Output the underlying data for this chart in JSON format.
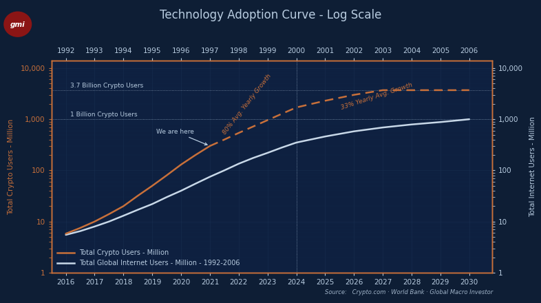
{
  "title": "Technology Adoption Curve - Log Scale",
  "background_color": "#0e1e35",
  "plot_bg_color": "#0e2040",
  "text_color": "#b8cce0",
  "grid_color": "#1a3355",
  "orange_color": "#c8703a",
  "white_color": "#c8d8e8",
  "xlim": [
    2015.5,
    2030.8
  ],
  "ylim": [
    1,
    14000
  ],
  "crypto_solid_years": [
    2016,
    2016.5,
    2017,
    2017.5,
    2018,
    2018.5,
    2019,
    2019.5,
    2020,
    2020.5,
    2021
  ],
  "crypto_solid_values": [
    5.8,
    7.5,
    10,
    14,
    20,
    32,
    50,
    80,
    130,
    200,
    300
  ],
  "crypto_dash_years": [
    2021,
    2021.5,
    2022,
    2022.5,
    2023,
    2023.5,
    2024,
    2025,
    2026,
    2027,
    2028,
    2029,
    2030
  ],
  "crypto_dash_values": [
    300,
    400,
    540,
    720,
    960,
    1280,
    1700,
    2300,
    3000,
    3700,
    3700,
    3700,
    3700
  ],
  "internet_years": [
    2016,
    2016.5,
    2017,
    2017.5,
    2018,
    2018.5,
    2019,
    2019.5,
    2020,
    2020.5,
    2021,
    2021.5,
    2022,
    2022.5,
    2023,
    2023.5,
    2024,
    2025,
    2026,
    2027,
    2028,
    2029,
    2030
  ],
  "internet_values": [
    5.5,
    6.5,
    8,
    10,
    13,
    17,
    22,
    30,
    40,
    55,
    75,
    100,
    135,
    175,
    220,
    280,
    350,
    460,
    580,
    690,
    790,
    880,
    1000
  ],
  "top_axis_labels": [
    "1992",
    "1993",
    "1994",
    "1995",
    "1996",
    "1997",
    "1998",
    "1999",
    "2000",
    "2001",
    "2002",
    "2003",
    "2004",
    "2005",
    "2006"
  ],
  "top_axis_positions": [
    2016,
    2017,
    2018,
    2019,
    2020,
    2021,
    2022,
    2023,
    2024,
    2025,
    2026,
    2027,
    2028,
    2029,
    2030
  ],
  "hline_1b": 1000,
  "hline_37b": 3700,
  "vline_x": 2024,
  "source_text": "Source:   Crypto.com · World Bank · Global Macro Investor",
  "legend_crypto": "Total Crypto Users - Million",
  "legend_internet": "Total Global Internet Users - Million - 1992-2006",
  "annotation_we_are_here": "We are here",
  "annotation_80": "80% Avg. Yearly Growth",
  "annotation_33": "33% Yearly Avg. Growth",
  "annotation_1b": "1 Billion Crypto Users",
  "annotation_37b": "3.7 Billion Crypto Users",
  "logo_text": "gmi",
  "title_fontsize": 12,
  "label_fontsize": 7.5,
  "tick_fontsize": 7.5
}
